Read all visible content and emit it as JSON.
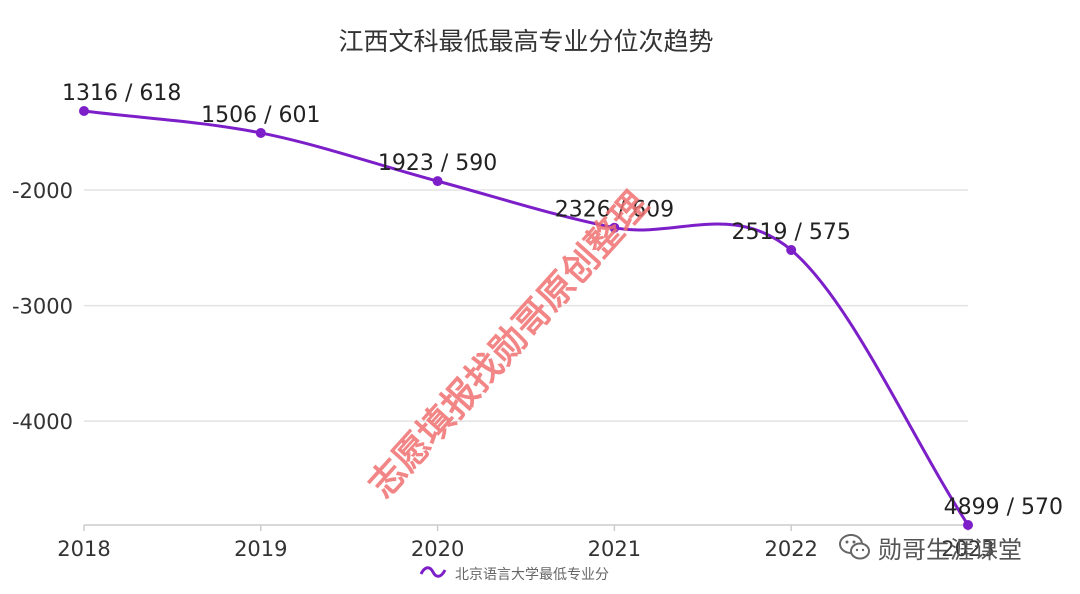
{
  "chart_data": {
    "type": "line",
    "title": "江西文科最低最高专业分位次趋势",
    "x": [
      "2018",
      "2019",
      "2020",
      "2021",
      "2022",
      "2023"
    ],
    "series": [
      {
        "name": "北京语言大学最低专业分",
        "color": "#7d1fc9",
        "values": [
          -1316,
          -1506,
          -1923,
          -2326,
          -2519,
          -4899
        ],
        "labels": [
          "1316 / 618",
          "1506 / 601",
          "1923 / 590",
          "2326 / 609",
          "2519 / 575",
          "4899 / 570"
        ]
      }
    ],
    "y_ticks": [
      "-2000",
      "-3000",
      "-4000"
    ],
    "y_tick_values": [
      -2000,
      -3000,
      -4000
    ],
    "ylim": [
      -4899,
      -1316
    ],
    "grid": true,
    "legend_position": "bottom",
    "smooth": true
  },
  "watermark": "志愿填报找勋哥原创整理",
  "brand": {
    "icon": "wechat-icon",
    "text": "勋哥生涯课堂"
  }
}
